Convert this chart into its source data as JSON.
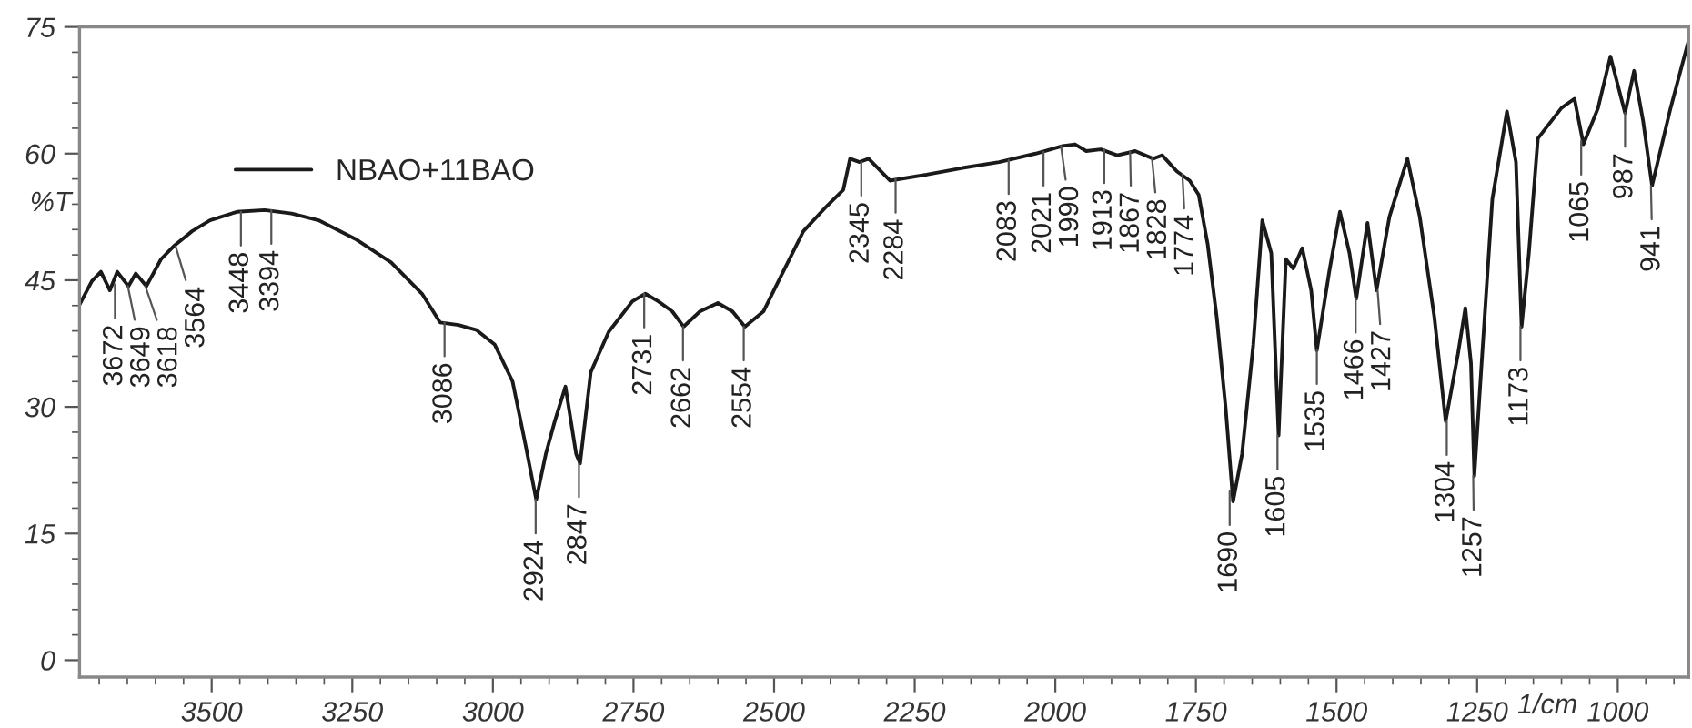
{
  "chart_data": {
    "type": "line",
    "xlabel": "1/cm",
    "ylabel": "%T",
    "xlim": [
      3735,
      874
    ],
    "xticks": [
      3500,
      3250,
      3000,
      2750,
      2500,
      2250,
      2000,
      1750,
      1500,
      1250,
      1000
    ],
    "ylim": [
      -2,
      75
    ],
    "yticks": [
      0,
      15,
      30,
      45,
      60,
      75
    ],
    "grid": false,
    "legend": "top left",
    "marker": "none",
    "line_style": "solid",
    "series": [
      {
        "name": "NBAO+11BAO",
        "color": "#1a1a1a",
        "x": [
          3735,
          3713,
          3697,
          3681,
          3668,
          3648,
          3635,
          3616,
          3590,
          3568,
          3535,
          3503,
          3455,
          3406,
          3358,
          3310,
          3245,
          3181,
          3126,
          3094,
          3061,
          3029,
          2997,
          2965,
          2942,
          2923,
          2906,
          2890,
          2871,
          2852,
          2845,
          2826,
          2794,
          2752,
          2729,
          2706,
          2681,
          2661,
          2632,
          2600,
          2574,
          2552,
          2519,
          2487,
          2448,
          2406,
          2377,
          2365,
          2348,
          2332,
          2294,
          2229,
          2165,
          2100,
          2035,
          1987,
          1965,
          1945,
          1919,
          1890,
          1858,
          1826,
          1810,
          1784,
          1761,
          1745,
          1729,
          1713,
          1697,
          1684,
          1668,
          1648,
          1632,
          1616,
          1603,
          1590,
          1577,
          1561,
          1545,
          1535,
          1513,
          1494,
          1477,
          1465,
          1445,
          1429,
          1406,
          1374,
          1352,
          1326,
          1306,
          1284,
          1271,
          1261,
          1255,
          1242,
          1223,
          1197,
          1181,
          1171,
          1158,
          1142,
          1100,
          1077,
          1061,
          1035,
          1013,
          987,
          971,
          955,
          939,
          906,
          874
        ],
        "values": [
          42.1,
          44.9,
          46.0,
          43.8,
          46.0,
          44.3,
          45.8,
          44.3,
          47.5,
          49.0,
          50.8,
          52.1,
          53.1,
          53.3,
          52.9,
          52.1,
          49.9,
          47.1,
          43.4,
          40.0,
          39.7,
          39.1,
          37.4,
          33.0,
          25.5,
          19.0,
          24.4,
          28.3,
          32.4,
          24.4,
          23.3,
          34.1,
          38.9,
          42.5,
          43.4,
          42.5,
          41.3,
          39.5,
          41.3,
          42.3,
          41.3,
          39.5,
          41.3,
          45.6,
          50.8,
          53.8,
          55.7,
          59.4,
          59.0,
          59.4,
          56.8,
          57.5,
          58.3,
          59.0,
          60.0,
          60.9,
          61.1,
          60.3,
          60.5,
          59.8,
          60.3,
          59.4,
          59.8,
          57.9,
          56.8,
          55.1,
          49.2,
          40.6,
          29.8,
          18.8,
          24.4,
          37.4,
          52.1,
          48.2,
          26.6,
          47.5,
          46.4,
          48.8,
          43.8,
          36.7,
          46.0,
          53.1,
          48.2,
          42.8,
          51.8,
          43.8,
          52.5,
          59.4,
          52.5,
          40.6,
          28.3,
          36.3,
          41.7,
          35.2,
          21.8,
          35.2,
          54.6,
          65.0,
          59.0,
          39.5,
          48.2,
          61.8,
          65.4,
          66.5,
          61.1,
          65.4,
          71.5,
          64.8,
          69.8,
          63.9,
          56.2,
          65.4,
          73.4
        ]
      }
    ],
    "annotations": [
      {
        "text": "3672",
        "x": 3672,
        "y": 44.5
      },
      {
        "text": "3649",
        "x": 3649,
        "y": 44.3
      },
      {
        "text": "3618",
        "x": 3618,
        "y": 44.3
      },
      {
        "text": "3564",
        "x": 3564,
        "y": 49.0
      },
      {
        "text": "3448",
        "x": 3448,
        "y": 53.1
      },
      {
        "text": "3394",
        "x": 3394,
        "y": 53.3
      },
      {
        "text": "3086",
        "x": 3086,
        "y": 40.0
      },
      {
        "text": "2924",
        "x": 2924,
        "y": 19.0
      },
      {
        "text": "2847",
        "x": 2847,
        "y": 23.3
      },
      {
        "text": "2731",
        "x": 2731,
        "y": 43.4
      },
      {
        "text": "2662",
        "x": 2662,
        "y": 39.5
      },
      {
        "text": "2554",
        "x": 2554,
        "y": 39.5
      },
      {
        "text": "2345",
        "x": 2345,
        "y": 59.0
      },
      {
        "text": "2284",
        "x": 2284,
        "y": 57.0
      },
      {
        "text": "2083",
        "x": 2083,
        "y": 59.2
      },
      {
        "text": "2021",
        "x": 2021,
        "y": 60.2
      },
      {
        "text": "1990",
        "x": 1990,
        "y": 60.9
      },
      {
        "text": "1913",
        "x": 1913,
        "y": 60.5
      },
      {
        "text": "1867",
        "x": 1867,
        "y": 60.2
      },
      {
        "text": "1828",
        "x": 1828,
        "y": 59.4
      },
      {
        "text": "1774",
        "x": 1774,
        "y": 57.5
      },
      {
        "text": "1690",
        "x": 1690,
        "y": 20.0
      },
      {
        "text": "1605",
        "x": 1605,
        "y": 26.6
      },
      {
        "text": "1535",
        "x": 1535,
        "y": 36.7
      },
      {
        "text": "1466",
        "x": 1466,
        "y": 42.8
      },
      {
        "text": "1427",
        "x": 1427,
        "y": 43.8
      },
      {
        "text": "1304",
        "x": 1304,
        "y": 28.3
      },
      {
        "text": "1257",
        "x": 1257,
        "y": 21.8
      },
      {
        "text": "1173",
        "x": 1173,
        "y": 39.5
      },
      {
        "text": "1065",
        "x": 1065,
        "y": 61.5
      },
      {
        "text": "987",
        "x": 987,
        "y": 64.8
      },
      {
        "text": "941",
        "x": 941,
        "y": 56.2
      }
    ]
  }
}
